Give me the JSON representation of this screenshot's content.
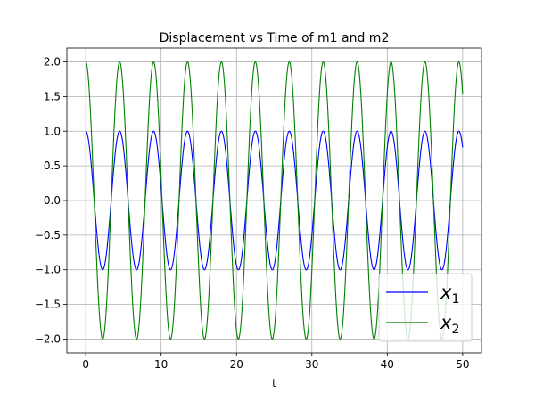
{
  "colors": {
    "x1": "#0000ff",
    "x2": "#008000",
    "grid": "#b0b0b0",
    "axes": "#000000",
    "legend_border": "#cccccc"
  },
  "chart_data": {
    "type": "line",
    "title": "Displacement vs Time of m1 and m2",
    "xlabel": "t",
    "ylabel": "",
    "xlim": [
      -2.5,
      52.5
    ],
    "ylim": [
      -2.2,
      2.2
    ],
    "grid": true,
    "legend_position": "lower right",
    "x_ticks": [
      0,
      10,
      20,
      30,
      40,
      50
    ],
    "x_tick_labels": [
      "0",
      "10",
      "20",
      "30",
      "40",
      "50"
    ],
    "y_ticks": [
      2.0,
      1.5,
      1.0,
      0.5,
      0.0,
      -0.5,
      -1.0,
      -1.5,
      -2.0
    ],
    "y_tick_labels": [
      "2.0",
      "1.5",
      "1.0",
      "0.5",
      "0.0",
      "−0.5",
      "−1.0",
      "−1.5",
      "−2.0"
    ],
    "series": [
      {
        "name": "x1",
        "legend_label": "x",
        "legend_subscript": "1",
        "color": "#0000ff",
        "t_range": [
          0,
          50
        ],
        "amplitude": 1.0,
        "period": 4.5,
        "phase_at_t0": "cosine max"
      },
      {
        "name": "x2",
        "legend_label": "x",
        "legend_subscript": "2",
        "color": "#008000",
        "t_range": [
          0,
          50
        ],
        "amplitude": 2.0,
        "period": 4.5,
        "phase_at_t0": "cosine max"
      }
    ]
  }
}
